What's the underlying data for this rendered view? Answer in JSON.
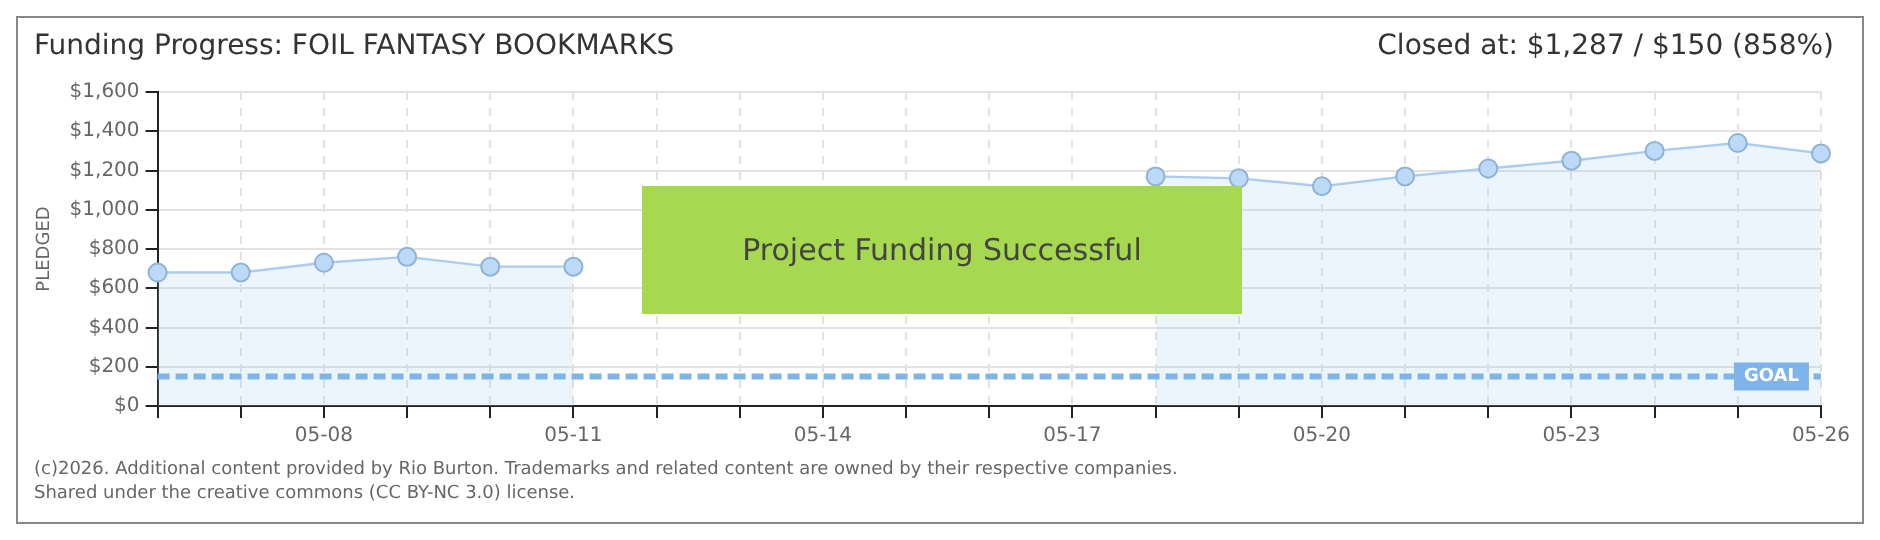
{
  "chart_data": {
    "type": "area",
    "title": "Funding Progress: FOIL FANTASY BOOKMARKS",
    "subtitle": "Closed at: $1,287 / $150 (858%)",
    "ylabel": "PLEDGED",
    "categories": [
      null,
      null,
      "05-08",
      null,
      null,
      "05-11",
      null,
      null,
      "05-14",
      null,
      null,
      "05-17",
      null,
      null,
      "05-20",
      null,
      null,
      "05-23",
      null,
      null,
      "05-26"
    ],
    "series": [
      {
        "color": "#a9cdf2",
        "values": [
          680,
          680,
          730,
          760,
          710,
          710,
          null,
          null,
          null,
          null,
          null,
          null,
          1170,
          1160,
          1120,
          1170,
          1210,
          1250,
          1300,
          1340,
          1287
        ]
      }
    ],
    "ylim": [
      0,
      1600
    ],
    "yticks": [
      {
        "value": 0,
        "label": "$0"
      },
      {
        "value": 200,
        "label": "$200"
      },
      {
        "value": 400,
        "label": "$400"
      },
      {
        "value": 600,
        "label": "$600"
      },
      {
        "value": 800,
        "label": "$800"
      },
      {
        "value": 1000,
        "label": "$1,000"
      },
      {
        "value": 1200,
        "label": "$1,200"
      },
      {
        "value": 1400,
        "label": "$1,400"
      },
      {
        "value": 1600,
        "label": "$1,600"
      }
    ],
    "grid": true,
    "legend": false,
    "marker": "circle",
    "ref_lines": [
      {
        "axis": "y",
        "value": 150,
        "label": "GOAL",
        "color": "#7fb4ea",
        "line_style": "dashed"
      }
    ],
    "annotations": [
      "Project Funding Successful",
      "(c)2026. Additional content provided by Rio Burton. Trademarks and related content are owned by their respective companies.",
      "Shared under the creative commons (CC BY-NC 3.0) license."
    ]
  }
}
